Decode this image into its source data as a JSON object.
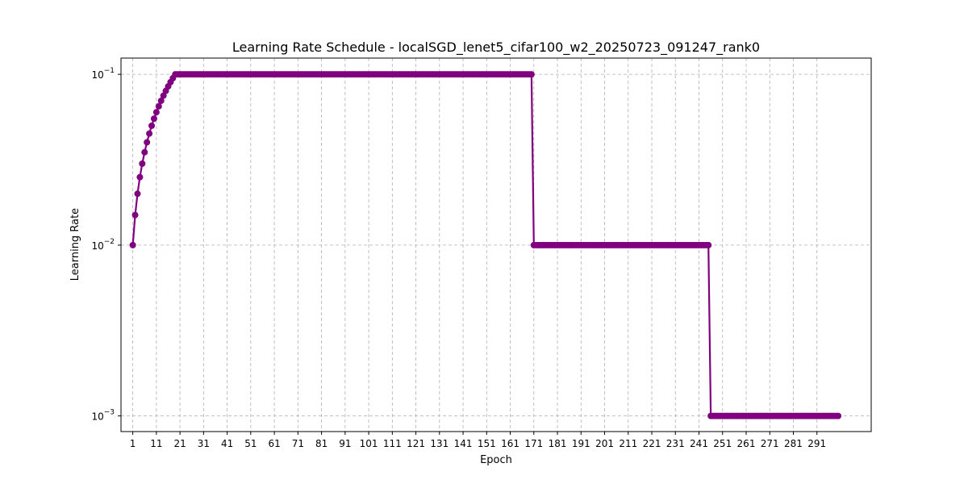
{
  "chart_data": {
    "type": "line",
    "title": "Learning Rate Schedule - localSGD_lenet5_cifar100_w2_20250723_091247_rank0",
    "xlabel": "Epoch",
    "ylabel": "Learning Rate",
    "yscale": "log",
    "xlim": [
      -4,
      314
    ],
    "ylim": [
      0.00081,
      0.1245
    ],
    "grid": true,
    "legend": "none",
    "line_color": "#800080",
    "marker": "circle",
    "x_ticks": [
      1,
      11,
      21,
      31,
      41,
      51,
      61,
      71,
      81,
      91,
      101,
      111,
      121,
      131,
      141,
      151,
      161,
      171,
      181,
      191,
      201,
      211,
      221,
      231,
      241,
      251,
      261,
      271,
      281,
      291
    ],
    "y_ticks": [
      {
        "value": 0.001,
        "base": "10",
        "exp": "−3"
      },
      {
        "value": 0.01,
        "base": "10",
        "exp": "−2"
      },
      {
        "value": 0.1,
        "base": "10",
        "exp": "−1"
      }
    ],
    "series": [
      {
        "warmup": {
          "start_epoch": 1,
          "end_epoch": 19,
          "start_lr": 0.01,
          "end_lr": 0.1
        },
        "segments": [
          {
            "from": 20,
            "to": 170,
            "lr": 0.1
          },
          {
            "from": 171,
            "to": 245,
            "lr": 0.01
          },
          {
            "from": 246,
            "to": 300,
            "lr": 0.001
          }
        ]
      }
    ]
  }
}
